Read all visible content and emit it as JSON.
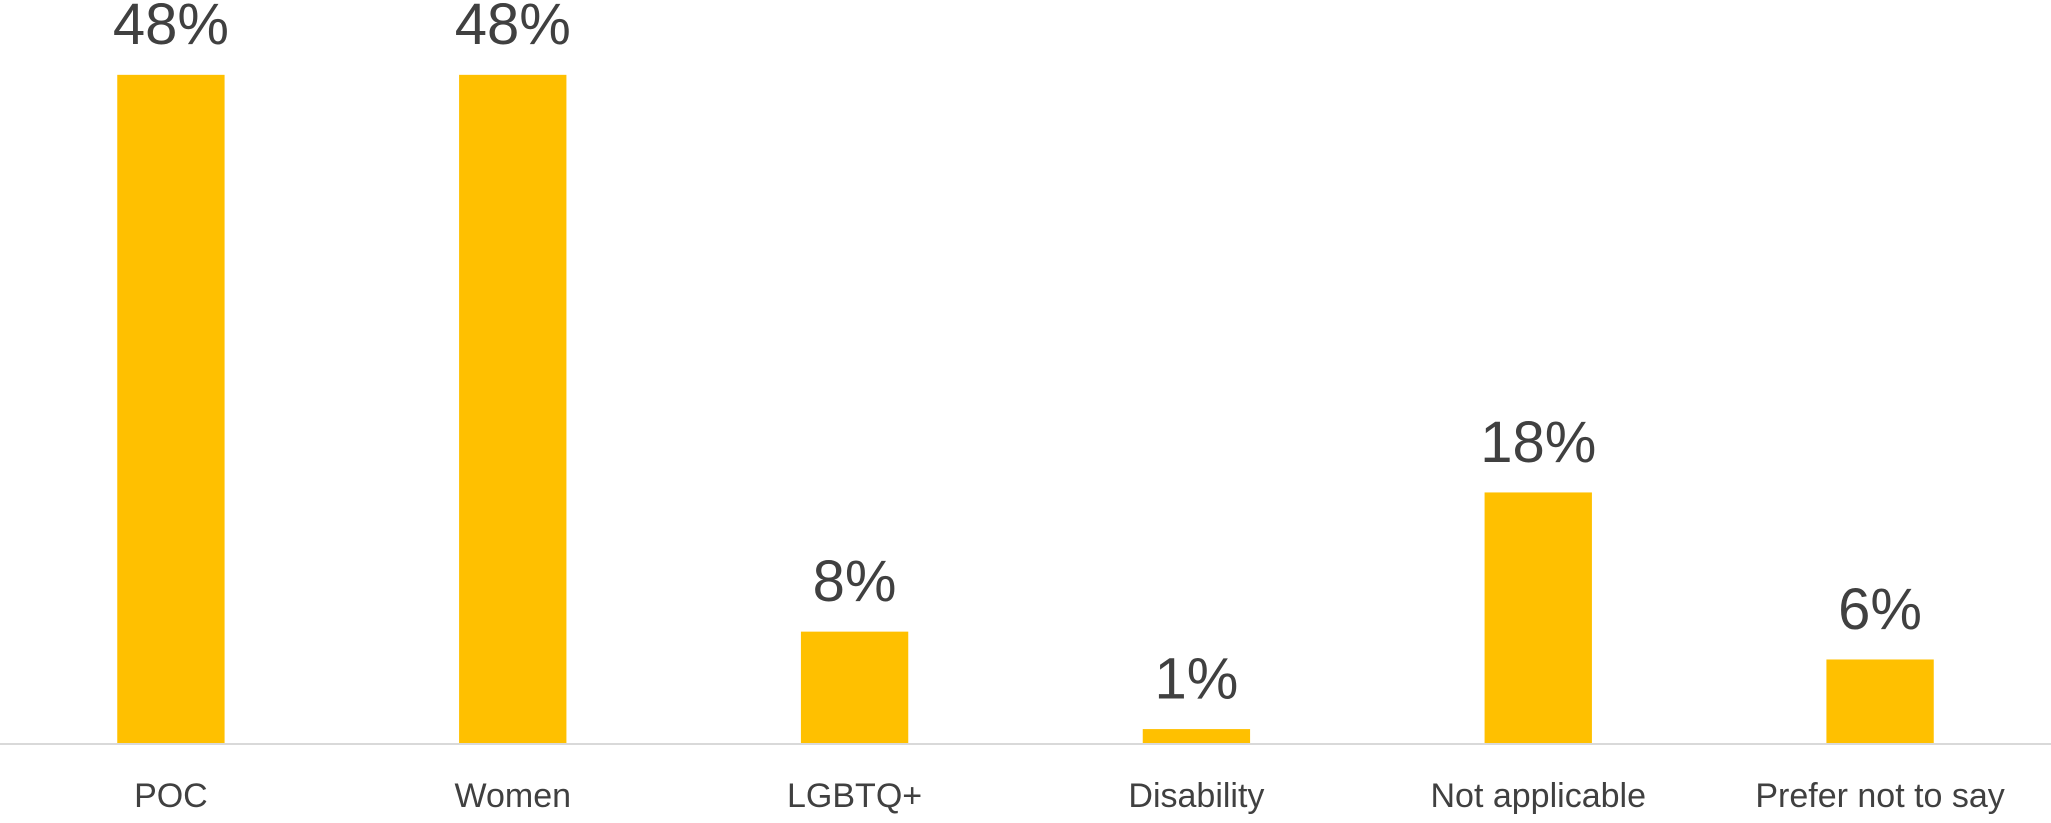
{
  "chart_data": {
    "type": "bar",
    "categories": [
      "POC",
      "Women",
      "LGBTQ+",
      "Disability",
      "Not applicable",
      "Prefer not to say"
    ],
    "values": [
      48,
      48,
      8,
      1,
      18,
      6
    ],
    "value_labels": [
      "48%",
      "48%",
      "8%",
      "1%",
      "18%",
      "6%"
    ],
    "color": "#ffc000",
    "ylim": [
      0,
      50
    ],
    "grid": false
  }
}
